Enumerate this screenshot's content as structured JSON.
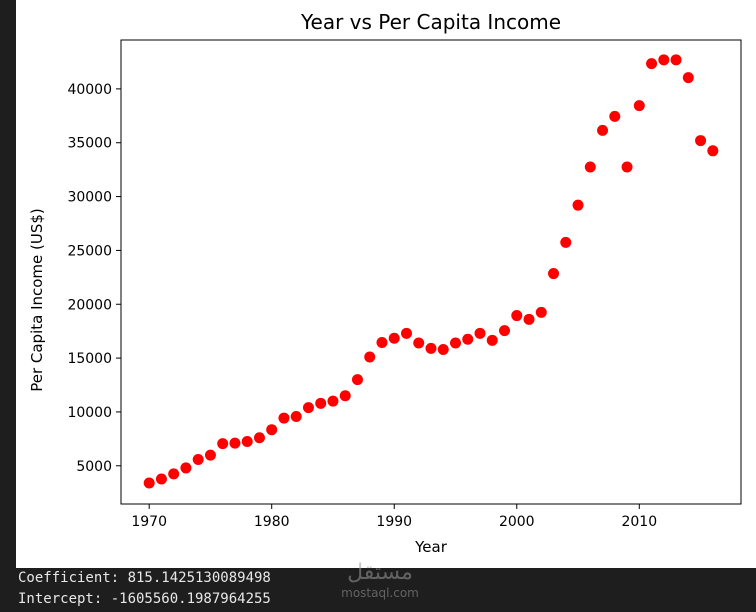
{
  "colors": {
    "background": "#1e1e1e",
    "plot_background": "#ffffff",
    "marker": "#ff0000",
    "output_text": "#e8e8e8"
  },
  "output": {
    "coefficient": "Coefficient: 815.1425130089498",
    "intercept": "Intercept: -1605560.1987964255"
  },
  "watermark": {
    "arabic": "مستقل",
    "latin": "mostaql.com"
  },
  "chart_data": {
    "type": "scatter",
    "title": "Year vs Per Capita Income",
    "xlabel": "Year",
    "ylabel": "Per Capita Income (US$)",
    "xlim": [
      1967.7,
      2018.3
    ],
    "ylim": [
      1450,
      44540
    ],
    "xticks": [
      1970,
      1980,
      1990,
      2000,
      2010
    ],
    "yticks": [
      5000,
      10000,
      15000,
      20000,
      25000,
      30000,
      35000,
      40000
    ],
    "marker_color": "#ff0000",
    "grid": false,
    "x": [
      1970,
      1971,
      1972,
      1973,
      1974,
      1975,
      1976,
      1977,
      1978,
      1979,
      1980,
      1981,
      1982,
      1983,
      1984,
      1985,
      1986,
      1987,
      1988,
      1989,
      1990,
      1991,
      1992,
      1993,
      1994,
      1995,
      1996,
      1997,
      1998,
      1999,
      2000,
      2001,
      2002,
      2003,
      2004,
      2005,
      2006,
      2007,
      2008,
      2009,
      2010,
      2011,
      2012,
      2013,
      2014,
      2015,
      2016
    ],
    "y": [
      3400,
      3770,
      4250,
      4800,
      5580,
      5990,
      7060,
      7100,
      7250,
      7600,
      8350,
      9430,
      9580,
      10400,
      10800,
      11000,
      11500,
      13000,
      15100,
      16450,
      16840,
      17300,
      16400,
      15900,
      15800,
      16400,
      16750,
      17300,
      16650,
      17550,
      18950,
      18600,
      19250,
      22850,
      25750,
      29200,
      32750,
      36150,
      37450,
      32750,
      38450,
      42350,
      42700,
      42700,
      41050,
      35200,
      34250
    ]
  }
}
